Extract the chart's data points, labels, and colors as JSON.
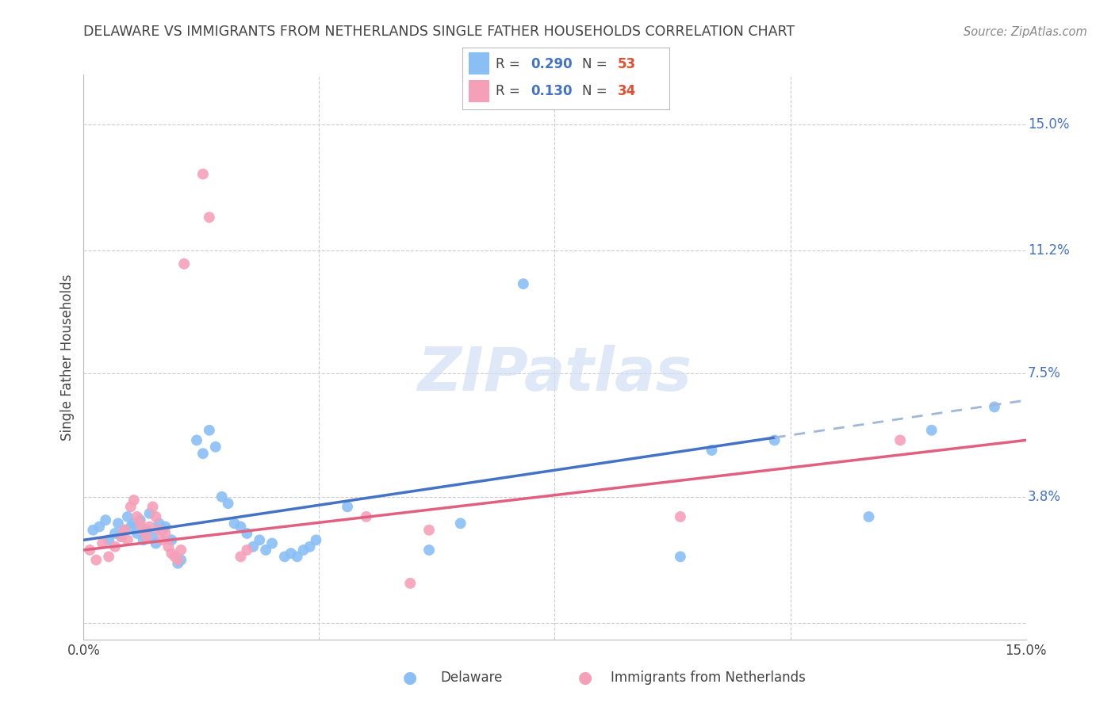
{
  "title": "DELAWARE VS IMMIGRANTS FROM NETHERLANDS SINGLE FATHER HOUSEHOLDS CORRELATION CHART",
  "source": "Source: ZipAtlas.com",
  "ylabel": "Single Father Households",
  "xlim": [
    0.0,
    15.0
  ],
  "ylim": [
    -0.5,
    16.5
  ],
  "ytick_values": [
    0.0,
    3.8,
    7.5,
    11.2,
    15.0
  ],
  "grid_y_vals": [
    0.0,
    3.8,
    7.5,
    11.2,
    15.0
  ],
  "grid_x_vals": [
    0.0,
    3.75,
    7.5,
    11.25,
    15.0
  ],
  "right_axis_labels": [
    [
      "15.0%",
      15.0
    ],
    [
      "11.2%",
      11.2
    ],
    [
      "7.5%",
      7.5
    ],
    [
      "3.8%",
      3.8
    ]
  ],
  "delaware_color": "#89bff5",
  "netherlands_color": "#f5a0b8",
  "delaware_line_color": "#4472c4",
  "netherlands_line_color": "#e06080",
  "dashed_line_color": "#a0b8d8",
  "background_color": "#ffffff",
  "grid_color": "#cccccc",
  "watermark_color": "#d0dff5",
  "title_color": "#444444",
  "source_color": "#888888",
  "right_label_color": "#4472c4",
  "legend_R_color": "#4472c4",
  "legend_N_color": "#e05030",
  "delaware_points": [
    [
      0.15,
      2.8
    ],
    [
      0.25,
      2.9
    ],
    [
      0.35,
      3.1
    ],
    [
      0.4,
      2.5
    ],
    [
      0.5,
      2.7
    ],
    [
      0.55,
      3.0
    ],
    [
      0.6,
      2.6
    ],
    [
      0.65,
      2.8
    ],
    [
      0.7,
      3.2
    ],
    [
      0.75,
      2.9
    ],
    [
      0.8,
      3.0
    ],
    [
      0.85,
      2.7
    ],
    [
      0.9,
      3.1
    ],
    [
      0.95,
      2.5
    ],
    [
      1.0,
      2.8
    ],
    [
      1.05,
      3.3
    ],
    [
      1.1,
      2.6
    ],
    [
      1.15,
      2.4
    ],
    [
      1.2,
      3.0
    ],
    [
      1.25,
      2.8
    ],
    [
      1.3,
      2.9
    ],
    [
      1.4,
      2.5
    ],
    [
      1.5,
      1.8
    ],
    [
      1.55,
      1.9
    ],
    [
      1.8,
      5.5
    ],
    [
      1.9,
      5.1
    ],
    [
      2.0,
      5.8
    ],
    [
      2.1,
      5.3
    ],
    [
      2.2,
      3.8
    ],
    [
      2.3,
      3.6
    ],
    [
      2.4,
      3.0
    ],
    [
      2.5,
      2.9
    ],
    [
      2.6,
      2.7
    ],
    [
      2.7,
      2.3
    ],
    [
      2.8,
      2.5
    ],
    [
      2.9,
      2.2
    ],
    [
      3.0,
      2.4
    ],
    [
      3.2,
      2.0
    ],
    [
      3.3,
      2.1
    ],
    [
      3.4,
      2.0
    ],
    [
      3.5,
      2.2
    ],
    [
      3.6,
      2.3
    ],
    [
      3.7,
      2.5
    ],
    [
      4.2,
      3.5
    ],
    [
      7.0,
      10.2
    ],
    [
      5.5,
      2.2
    ],
    [
      6.0,
      3.0
    ],
    [
      9.5,
      2.0
    ],
    [
      10.0,
      5.2
    ],
    [
      11.0,
      5.5
    ],
    [
      12.5,
      3.2
    ],
    [
      13.5,
      5.8
    ],
    [
      14.5,
      6.5
    ]
  ],
  "netherlands_points": [
    [
      0.1,
      2.2
    ],
    [
      0.2,
      1.9
    ],
    [
      0.3,
      2.4
    ],
    [
      0.4,
      2.0
    ],
    [
      0.5,
      2.3
    ],
    [
      0.6,
      2.6
    ],
    [
      0.65,
      2.8
    ],
    [
      0.7,
      2.5
    ],
    [
      0.75,
      3.5
    ],
    [
      0.8,
      3.7
    ],
    [
      0.85,
      3.2
    ],
    [
      0.9,
      3.0
    ],
    [
      0.95,
      2.8
    ],
    [
      1.0,
      2.6
    ],
    [
      1.05,
      2.9
    ],
    [
      1.1,
      3.5
    ],
    [
      1.15,
      3.2
    ],
    [
      1.2,
      2.8
    ],
    [
      1.25,
      2.5
    ],
    [
      1.3,
      2.7
    ],
    [
      1.35,
      2.3
    ],
    [
      1.4,
      2.1
    ],
    [
      1.45,
      2.0
    ],
    [
      1.5,
      1.9
    ],
    [
      1.55,
      2.2
    ],
    [
      1.6,
      10.8
    ],
    [
      1.9,
      13.5
    ],
    [
      2.0,
      12.2
    ],
    [
      2.5,
      2.0
    ],
    [
      2.6,
      2.2
    ],
    [
      4.5,
      3.2
    ],
    [
      5.2,
      1.2
    ],
    [
      5.5,
      2.8
    ],
    [
      9.5,
      3.2
    ],
    [
      13.0,
      5.5
    ]
  ],
  "delaware_trend": [
    2.5,
    0.28
  ],
  "netherlands_trend": [
    2.2,
    0.22
  ],
  "solid_end_x": 11.0,
  "dashed_start_x": 11.0,
  "dashed_end_x": 15.0
}
